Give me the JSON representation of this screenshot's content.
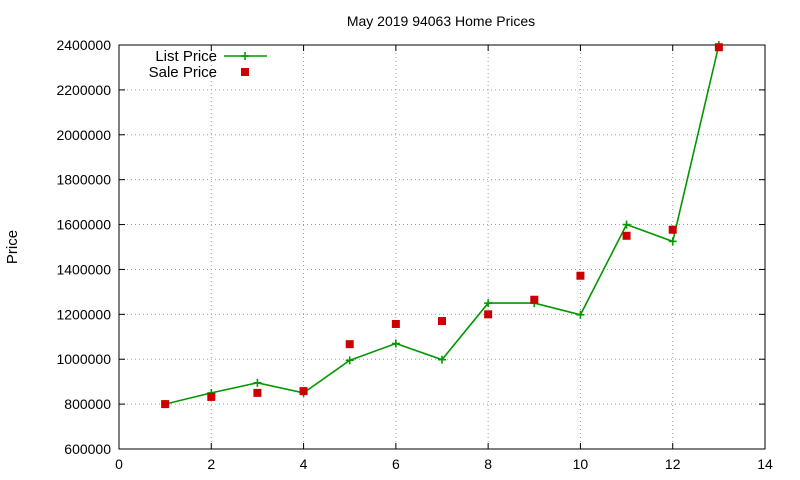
{
  "chart_data": {
    "type": "line",
    "title": "May 2019 94063 Home Prices",
    "xlabel": "",
    "ylabel": "Price",
    "xlim": [
      0,
      14
    ],
    "ylim": [
      600000,
      2400000
    ],
    "xticks": [
      0,
      2,
      4,
      6,
      8,
      10,
      12,
      14
    ],
    "yticks": [
      600000,
      800000,
      1000000,
      1200000,
      1400000,
      1600000,
      1800000,
      2000000,
      2200000,
      2400000
    ],
    "grid": true,
    "legend_position": "top-left",
    "series": [
      {
        "name": "List Price",
        "style": "line-with-plus-markers",
        "color": "#009900",
        "x": [
          1,
          2,
          3,
          4,
          5,
          6,
          7,
          8,
          9,
          10,
          11,
          12,
          13
        ],
        "y": [
          800000,
          850000,
          895000,
          850000,
          995000,
          1070000,
          998000,
          1250000,
          1250000,
          1198000,
          1600000,
          1525000,
          2400000
        ]
      },
      {
        "name": "Sale Price",
        "style": "square-markers",
        "color": "#cc0000",
        "x": [
          1,
          2,
          3,
          4,
          5,
          6,
          7,
          8,
          9,
          10,
          11,
          12,
          13
        ],
        "y": [
          800000,
          832000,
          850000,
          858000,
          1067000,
          1157000,
          1170000,
          1200000,
          1265000,
          1372000,
          1550000,
          1577000,
          2390000
        ]
      }
    ]
  }
}
